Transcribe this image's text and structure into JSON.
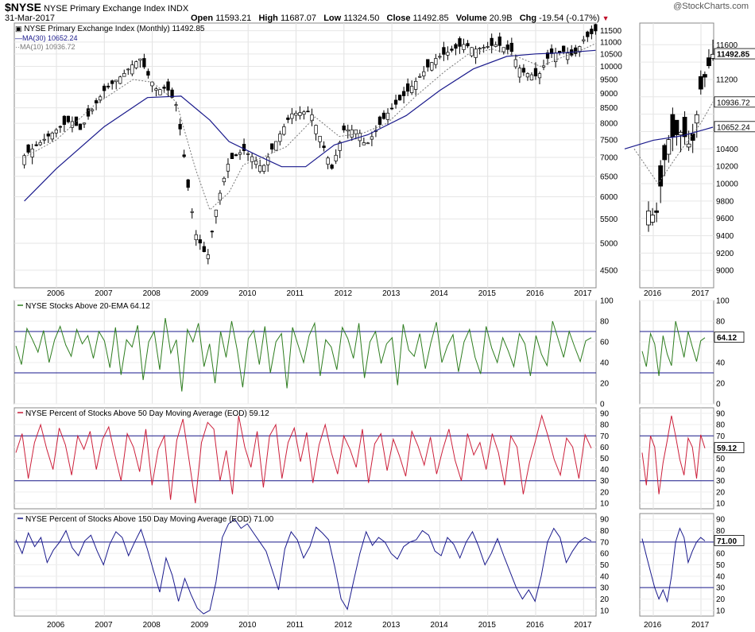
{
  "header": {
    "symbol": "$NYSE",
    "name": "NYSE Primary Exchange Index",
    "exchange": "INDX",
    "date": "31-Mar-2017",
    "watermark": "@StockCharts.com",
    "open_label": "Open",
    "open": "11593.21",
    "high_label": "High",
    "high": "11687.07",
    "low_label": "Low",
    "low": "11324.50",
    "close_label": "Close",
    "close": "11492.85",
    "volume_label": "Volume",
    "volume": "20.9B",
    "chg_label": "Chg",
    "chg": "-19.54 (-0.17%)"
  },
  "legend": {
    "main": "NYSE Primary Exchange Index (Monthly) 11492.85",
    "ma30": "MA(30) 10652.24",
    "ma10": "MA(10) 10936.72"
  },
  "badges": {
    "close": "11492.85",
    "ma10": "10936.72",
    "ma30": "10652.24",
    "ema20": "64.12",
    "pct50": "59.12",
    "pct150": "71.00"
  },
  "panel_titles": {
    "ema20": "NYSE Stocks Above 20-EMA 64.12",
    "pct50": "NYSE Percent of Stocks Above 50 Day Moving Average (EOD) 59.12",
    "pct150": "NYSE Percent of Stocks Above 150 Day Moving Average (EOD) 71.00"
  },
  "colors": {
    "ema20": "#2e7d1f",
    "pct50": "#cc1f3a",
    "pct150": "#1a1a8c",
    "ma30": "#1a1a8c",
    "ma10": "#777777",
    "refline": "#1a1a8c",
    "down_triangle": "#c0102a"
  },
  "chart_data": [
    {
      "id": "price",
      "type": "candlestick",
      "title": "NYSE Primary Exchange Index (Monthly)",
      "x_range": [
        2005.33,
        2017.25
      ],
      "ylim": [
        4200,
        11850
      ],
      "x_ticks": [
        "2006",
        "2007",
        "2008",
        "2009",
        "2010",
        "2011",
        "2012",
        "2013",
        "2014",
        "2015",
        "2016",
        "2017"
      ],
      "y_ticks": [
        4500,
        5000,
        5500,
        6000,
        6500,
        7000,
        7500,
        8000,
        8500,
        9000,
        9500,
        10000,
        10500,
        11000,
        11500
      ],
      "close_path": [
        [
          2005.33,
          7050
        ],
        [
          2005.6,
          7350
        ],
        [
          2006.0,
          7800
        ],
        [
          2006.3,
          8100
        ],
        [
          2006.5,
          7800
        ],
        [
          2007.0,
          9100
        ],
        [
          2007.4,
          9700
        ],
        [
          2007.6,
          10100
        ],
        [
          2007.75,
          10300
        ],
        [
          2007.9,
          9700
        ],
        [
          2008.1,
          9100
        ],
        [
          2008.3,
          9200
        ],
        [
          2008.5,
          8600
        ],
        [
          2008.75,
          6200
        ],
        [
          2008.9,
          5200
        ],
        [
          2009.15,
          4700
        ],
        [
          2009.35,
          5800
        ],
        [
          2009.6,
          6900
        ],
        [
          2009.9,
          7200
        ],
        [
          2010.1,
          7000
        ],
        [
          2010.3,
          6700
        ],
        [
          2010.6,
          7500
        ],
        [
          2010.9,
          8300
        ],
        [
          2011.3,
          8400
        ],
        [
          2011.6,
          7200
        ],
        [
          2011.75,
          6700
        ],
        [
          2012.0,
          7800
        ],
        [
          2012.3,
          7800
        ],
        [
          2012.45,
          7300
        ],
        [
          2012.9,
          8300
        ],
        [
          2013.3,
          9000
        ],
        [
          2013.9,
          10300
        ],
        [
          2014.5,
          10900
        ],
        [
          2014.75,
          10700
        ],
        [
          2015.2,
          10900
        ],
        [
          2015.5,
          10600
        ],
        [
          2015.7,
          9800
        ],
        [
          2016.05,
          9600
        ],
        [
          2016.3,
          10500
        ],
        [
          2016.6,
          10600
        ],
        [
          2016.8,
          10400
        ],
        [
          2017.0,
          11100
        ],
        [
          2017.25,
          11490
        ]
      ],
      "ma30_path": [
        [
          2005.33,
          5900
        ],
        [
          2006.0,
          6700
        ],
        [
          2007.0,
          7900
        ],
        [
          2007.9,
          8850
        ],
        [
          2008.6,
          8900
        ],
        [
          2009.2,
          8100
        ],
        [
          2009.6,
          7450
        ],
        [
          2010.2,
          7050
        ],
        [
          2010.7,
          6750
        ],
        [
          2011.2,
          6750
        ],
        [
          2011.8,
          7350
        ],
        [
          2012.5,
          7650
        ],
        [
          2013.3,
          8250
        ],
        [
          2014.0,
          9100
        ],
        [
          2014.7,
          9900
        ],
        [
          2015.4,
          10400
        ],
        [
          2016.0,
          10500
        ],
        [
          2016.6,
          10550
        ],
        [
          2017.25,
          10650
        ]
      ],
      "ma10_path": [
        [
          2005.33,
          7000
        ],
        [
          2006.0,
          7500
        ],
        [
          2006.8,
          8600
        ],
        [
          2007.6,
          9500
        ],
        [
          2008.0,
          9400
        ],
        [
          2008.5,
          8700
        ],
        [
          2008.9,
          6700
        ],
        [
          2009.2,
          5700
        ],
        [
          2009.6,
          6100
        ],
        [
          2009.9,
          6800
        ],
        [
          2010.3,
          7000
        ],
        [
          2010.8,
          7300
        ],
        [
          2011.4,
          8200
        ],
        [
          2011.9,
          7600
        ],
        [
          2012.4,
          7700
        ],
        [
          2012.9,
          8000
        ],
        [
          2013.5,
          8900
        ],
        [
          2014.1,
          9800
        ],
        [
          2014.6,
          10500
        ],
        [
          2015.1,
          10700
        ],
        [
          2015.6,
          10400
        ],
        [
          2016.1,
          10000
        ],
        [
          2016.6,
          10400
        ],
        [
          2017.0,
          10700
        ],
        [
          2017.25,
          10940
        ]
      ],
      "close": 11492.85,
      "ma30": 10652.24,
      "ma10": 10936.72
    },
    {
      "id": "ema20",
      "type": "line",
      "title": "NYSE Stocks Above 20-EMA",
      "ylim": [
        0,
        100
      ],
      "y_ticks": [
        0,
        20,
        40,
        60,
        80,
        100
      ],
      "reference_lines": [
        30,
        70
      ],
      "last_value": 64.12,
      "values": [
        56,
        38,
        73,
        62,
        50,
        71,
        40,
        62,
        75,
        57,
        46,
        72,
        58,
        66,
        44,
        70,
        61,
        35,
        74,
        28,
        62,
        55,
        76,
        23,
        60,
        70,
        33,
        83,
        49,
        62,
        12,
        72,
        60,
        78,
        36,
        58,
        20,
        70,
        45,
        80,
        52,
        16,
        63,
        71,
        38,
        75,
        30,
        60,
        68,
        15,
        74,
        57,
        40,
        66,
        78,
        27,
        62,
        55,
        33,
        74,
        63,
        44,
        78,
        25,
        60,
        70,
        39,
        58,
        64,
        18,
        77,
        52,
        46,
        68,
        34,
        59,
        79,
        40,
        56,
        67,
        31,
        60,
        72,
        45,
        29,
        75,
        54,
        40,
        64,
        51,
        36,
        68,
        58,
        27,
        66,
        48,
        37,
        80,
        63,
        45,
        70,
        55,
        41,
        61,
        64
      ]
    },
    {
      "id": "pct50",
      "type": "line",
      "title": "NYSE Percent of Stocks Above 50 Day Moving Average (EOD)",
      "ylim": [
        5,
        95
      ],
      "y_ticks": [
        10,
        20,
        30,
        40,
        50,
        60,
        70,
        80,
        90
      ],
      "reference_lines": [
        30,
        70
      ],
      "last_value": 59.12,
      "values": [
        55,
        72,
        32,
        64,
        80,
        58,
        40,
        77,
        62,
        35,
        70,
        58,
        74,
        40,
        67,
        78,
        53,
        30,
        72,
        60,
        38,
        76,
        26,
        58,
        70,
        13,
        66,
        85,
        48,
        10,
        64,
        82,
        76,
        30,
        57,
        18,
        88,
        60,
        42,
        74,
        24,
        70,
        80,
        32,
        64,
        77,
        47,
        73,
        28,
        62,
        80,
        55,
        36,
        70,
        58,
        42,
        76,
        28,
        63,
        72,
        39,
        67,
        52,
        34,
        74,
        61,
        44,
        69,
        36,
        58,
        76,
        48,
        30,
        72,
        53,
        64,
        40,
        72,
        55,
        26,
        70,
        60,
        18,
        46,
        66,
        88,
        70,
        49,
        35,
        68,
        60,
        32,
        71,
        59
      ],
      "extra": "last point 59.12"
    },
    {
      "id": "pct150",
      "type": "line",
      "title": "NYSE Percent of Stocks Above 150 Day Moving Average (EOD)",
      "ylim": [
        5,
        95
      ],
      "y_ticks": [
        10,
        20,
        30,
        40,
        50,
        60,
        70,
        80,
        90
      ],
      "reference_lines": [
        30,
        70
      ],
      "last_value": 71.0,
      "values": [
        72,
        60,
        78,
        66,
        74,
        52,
        63,
        70,
        80,
        65,
        58,
        71,
        76,
        62,
        50,
        68,
        79,
        74,
        58,
        70,
        81,
        64,
        45,
        26,
        56,
        41,
        18,
        38,
        24,
        12,
        7,
        10,
        35,
        74,
        86,
        90,
        82,
        86,
        78,
        70,
        62,
        45,
        28,
        64,
        79,
        72,
        56,
        66,
        83,
        78,
        72,
        48,
        20,
        11,
        36,
        60,
        79,
        67,
        74,
        70,
        60,
        55,
        66,
        70,
        72,
        80,
        76,
        62,
        58,
        74,
        68,
        56,
        70,
        79,
        66,
        50,
        60,
        73,
        58,
        44,
        30,
        20,
        28,
        18,
        40,
        70,
        82,
        74,
        52,
        62,
        70,
        74,
        71
      ]
    }
  ]
}
